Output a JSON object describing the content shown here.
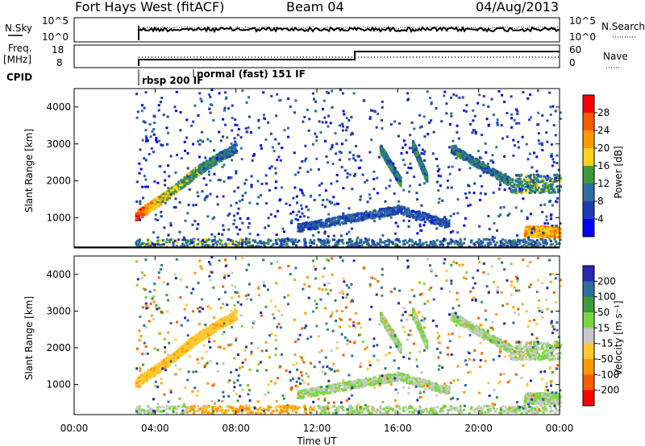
{
  "header": {
    "station": "Fort Hays West (fitACF)",
    "beam": "Beam 04",
    "date": "04/Aug/2013"
  },
  "top_panels": {
    "nsky_label": "N.Sky",
    "nsearch_label": "N.Search",
    "nsky_ticks": [
      "10^5",
      "10^0"
    ],
    "freq_label_1": "Freq.",
    "freq_label_2": "[MHz]",
    "freq_ticks": [
      "18",
      "8"
    ],
    "nave_label": "Nave",
    "nave_ticks": [
      "60",
      "0"
    ],
    "cpid_label": "CPID",
    "cpid_mode_1": "rbsp 200 IF",
    "cpid_mode_2": "normal (fast) 151 IF"
  },
  "power_scale": {
    "label": "Power [dB]",
    "ticks": [
      "28",
      "24",
      "20",
      "16",
      "12",
      "8",
      "4"
    ],
    "colors": [
      "#ff0000",
      "#ff5a00",
      "#ff9900",
      "#ffd21e",
      "#3c9b3c",
      "#2c6e9c",
      "#1e3cb4",
      "#0000ff"
    ]
  },
  "velocity_scale": {
    "label": "Velocity [m s⁻¹]",
    "ticks": [
      "200",
      "100",
      "50",
      "15",
      "-15",
      "-50",
      "-100",
      "-200"
    ],
    "colors": [
      "#2828b4",
      "#2c6e9c",
      "#3c9b3c",
      "#7ad63c",
      "#c8c8c8",
      "#ffc832",
      "#ff9900",
      "#ff5a00",
      "#ff0000"
    ]
  },
  "chart_data": [
    {
      "type": "heatmap",
      "name": "power",
      "xlabel": "",
      "ylabel": "Slant Range [km]",
      "xlim_hours": [
        0,
        24
      ],
      "ylim": [
        180,
        4500
      ],
      "yticks": [
        "4000",
        "3000",
        "2000",
        "1000"
      ],
      "ytick_values": [
        4000,
        3000,
        2000,
        1000
      ],
      "colorbar_range_db": [
        0,
        30
      ],
      "data_start_hour": 3.0,
      "features": [
        {
          "desc": "rising echo band",
          "t": [
            3.0,
            4.0,
            5.0,
            6.0,
            7.0,
            8.0
          ],
          "range": [
            1100,
            1450,
            1850,
            2300,
            2650,
            2950
          ],
          "power": [
            27,
            18,
            14,
            12,
            10,
            8
          ]
        },
        {
          "desc": "near-range echoes",
          "t": [
            3.0,
            9.0
          ],
          "range": [
            200,
            450
          ],
          "power": 12
        },
        {
          "desc": "mid band",
          "t": [
            11.0,
            16.0,
            18.5
          ],
          "range": [
            750,
            1250,
            850
          ],
          "power": 6
        },
        {
          "desc": "late far-range arcs",
          "t": [
            14.5,
            21.5
          ],
          "range": [
            1900,
            3000
          ],
          "power": 10
        },
        {
          "desc": "late near echoes",
          "t": [
            22.2,
            24.0
          ],
          "range": [
            500,
            800
          ],
          "power": 20
        }
      ]
    },
    {
      "type": "heatmap",
      "name": "velocity",
      "xlabel": "Time UT",
      "ylabel": "Slant Range [km]",
      "xticks": [
        "00:00",
        "04:00",
        "08:00",
        "12:00",
        "16:00",
        "20:00",
        "00:00"
      ],
      "xtick_values": [
        0,
        4,
        8,
        12,
        16,
        20,
        24
      ],
      "ylim": [
        180,
        4500
      ],
      "yticks": [
        "4000",
        "3000",
        "2000",
        "1000"
      ],
      "ytick_values": [
        4000,
        3000,
        2000,
        1000
      ],
      "colorbar_range_ms": [
        -250,
        250
      ],
      "data_start_hour": 3.0,
      "features": [
        {
          "desc": "rising band, negative velocity",
          "t": [
            3.0,
            8.0
          ],
          "range": [
            1100,
            2950
          ],
          "velocity": -60
        },
        {
          "desc": "late arcs, near zero velocity",
          "t": [
            14.5,
            21.5
          ],
          "range": [
            1900,
            3000
          ],
          "velocity": 0
        },
        {
          "desc": "near range, negative velocity",
          "t": [
            5.5,
            12.0
          ],
          "range": [
            200,
            350
          ],
          "velocity": -80
        }
      ]
    }
  ]
}
